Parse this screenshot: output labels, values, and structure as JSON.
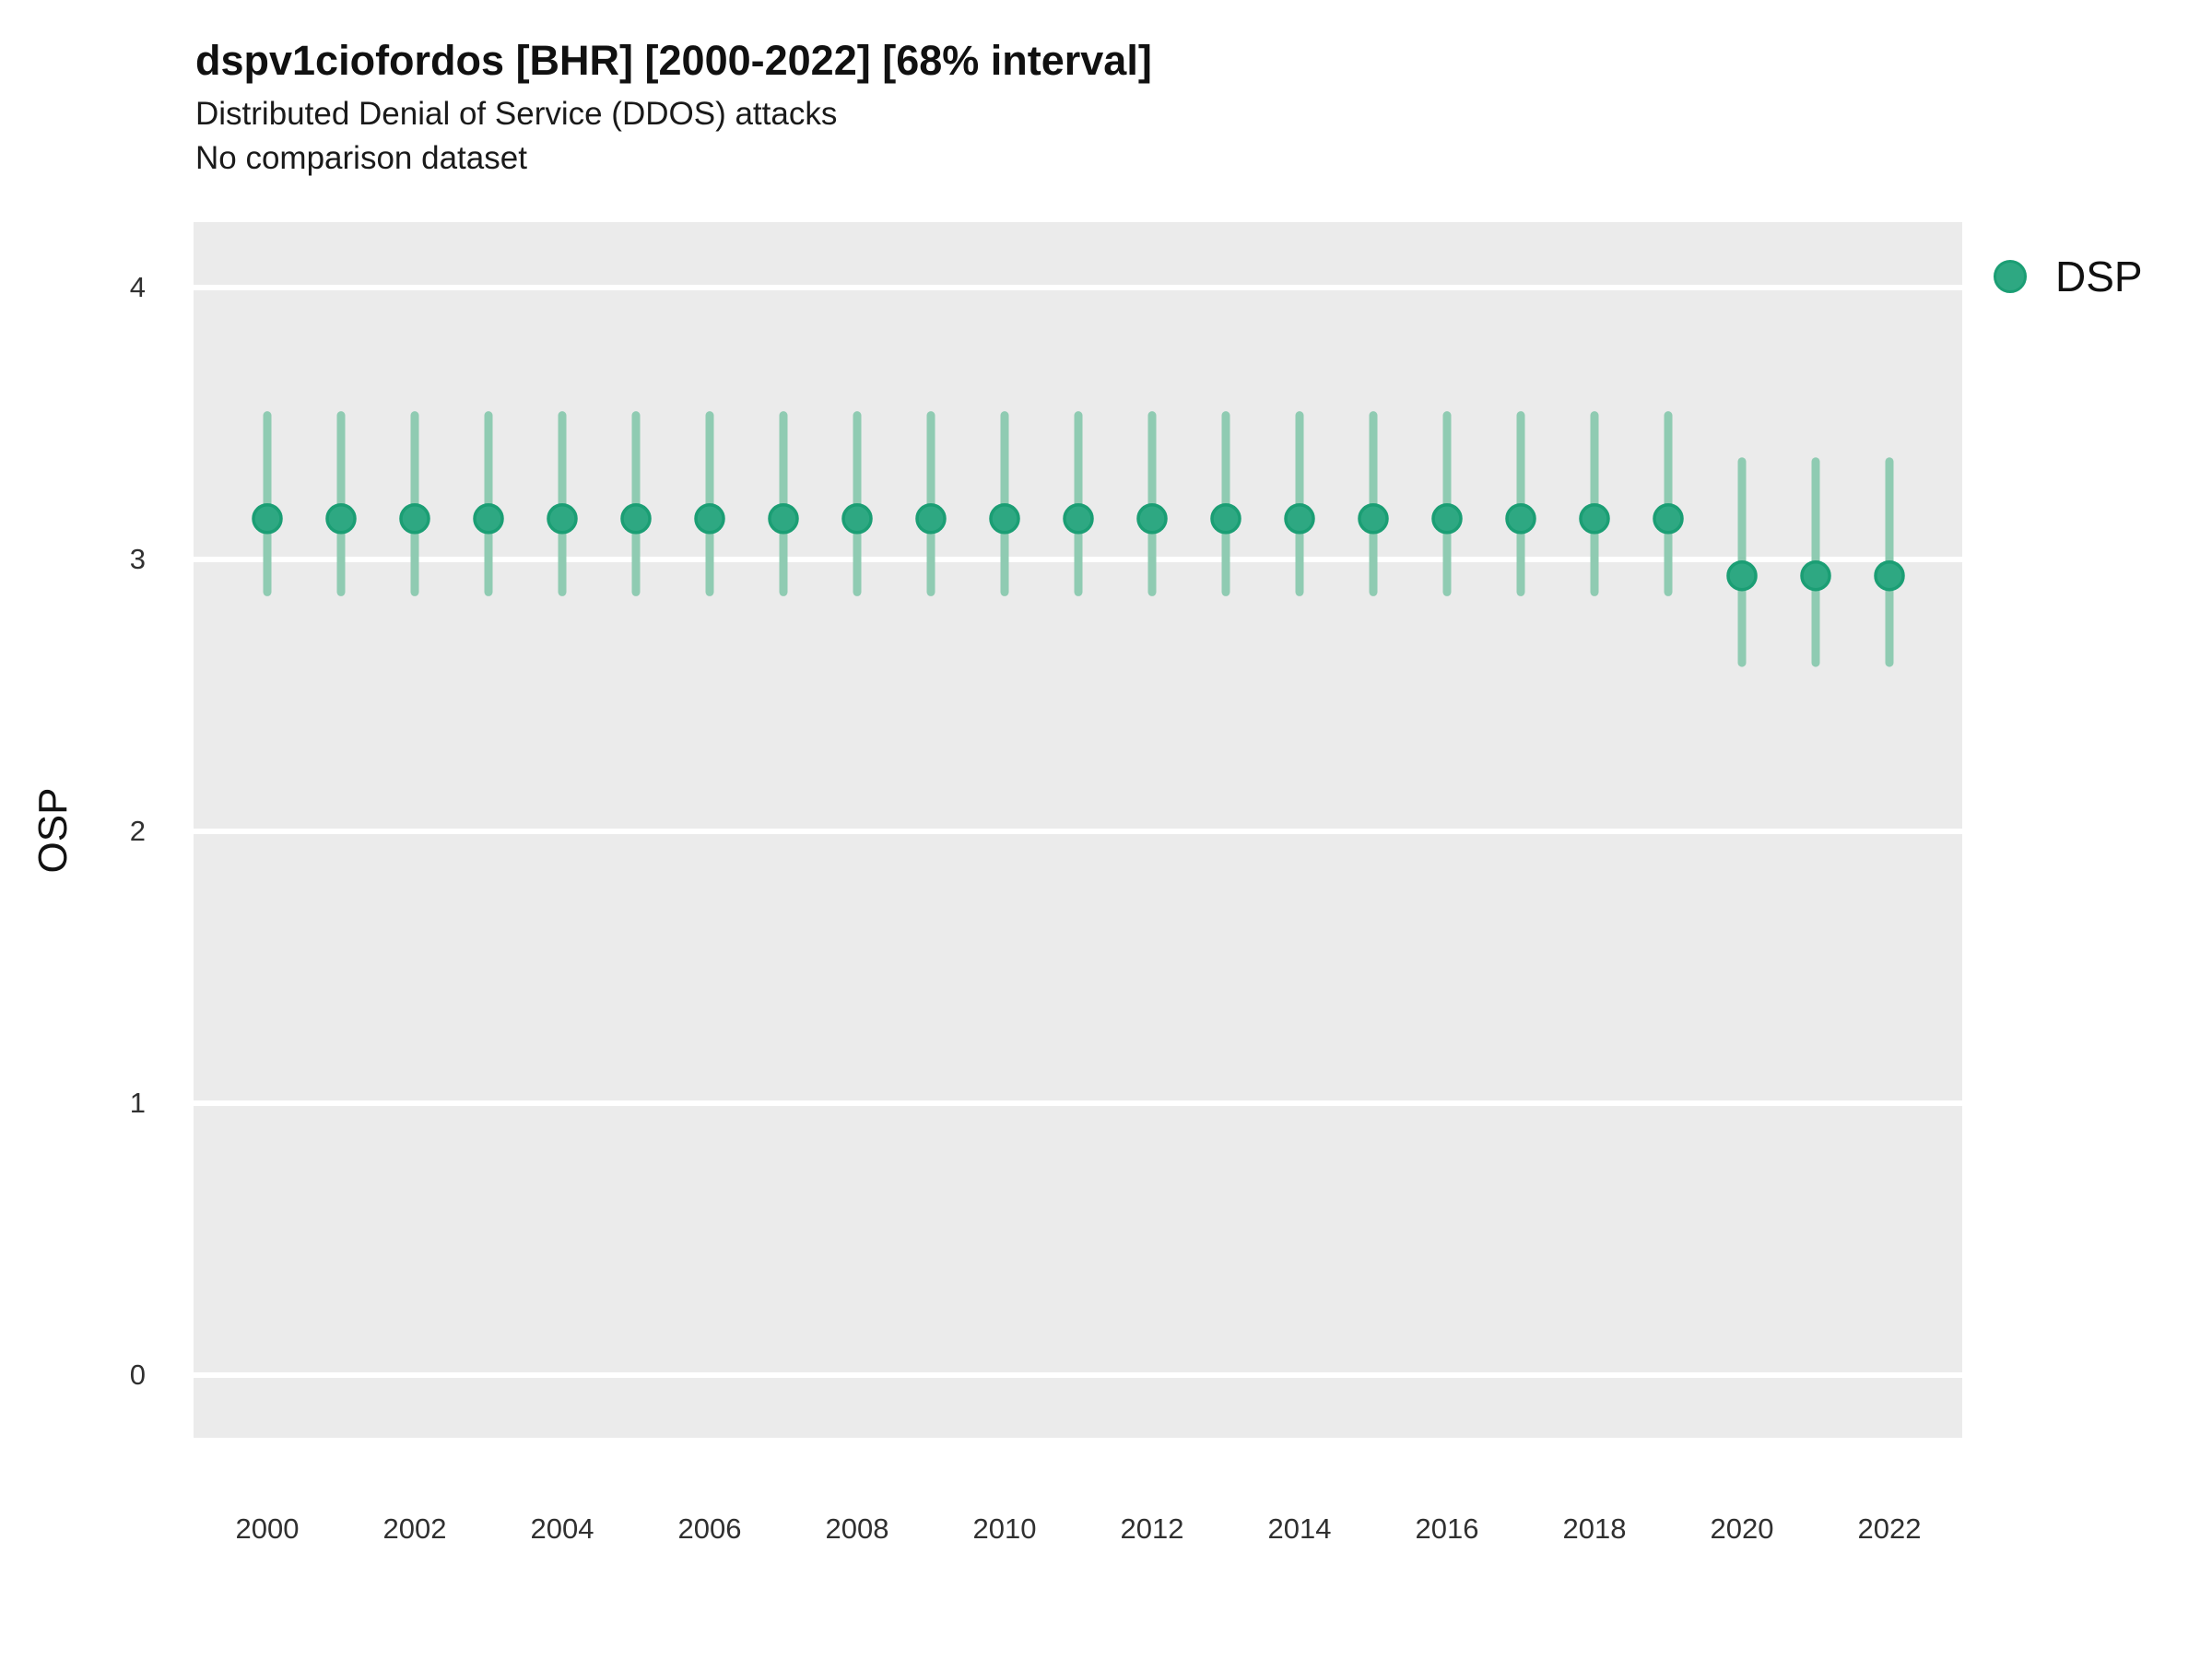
{
  "header": {
    "title": "dspv1ciofordos [BHR] [2000-2022] [68% interval]",
    "subtitle": "Distributed Denial of Service (DDOS) attacks",
    "comparison_note": "No comparison dataset"
  },
  "colors": {
    "panel_bg": "#EBEBEB",
    "gridline": "#FFFFFF",
    "point_fill": "#2EA882",
    "point_stroke": "#1B9E74",
    "interval_line": "#8FCBB2",
    "title_text": "#111111",
    "axis_text": "#303030"
  },
  "chart_data": {
    "type": "scatter",
    "subtype": "pointrange",
    "title": "dspv1ciofordos [BHR] [2000-2022] [68% interval]",
    "subtitle": "Distributed Denial of Service (DDOS) attacks",
    "annotation": "No comparison dataset",
    "interval": "68%",
    "xlabel": "",
    "ylabel": "OSP",
    "xlim": [
      1999,
      2023
    ],
    "ylim": [
      -0.24,
      4.22
    ],
    "x_ticks": [
      2000,
      2002,
      2004,
      2006,
      2008,
      2010,
      2012,
      2014,
      2016,
      2018,
      2020,
      2022
    ],
    "y_ticks": [
      0,
      1,
      2,
      3,
      4
    ],
    "grid": "major-horizontal-white-on-gray",
    "legend": {
      "position": "right",
      "entries": [
        {
          "label": "DSP",
          "color": "#2EA882"
        }
      ]
    },
    "series": [
      {
        "name": "DSP",
        "point_color": "#2EA882",
        "point_stroke": "#1B9E74",
        "interval_color": "#8FCBB2",
        "points": [
          {
            "x": 2000,
            "y": 3.15,
            "lo": 2.88,
            "hi": 3.53
          },
          {
            "x": 2001,
            "y": 3.15,
            "lo": 2.88,
            "hi": 3.53
          },
          {
            "x": 2002,
            "y": 3.15,
            "lo": 2.88,
            "hi": 3.53
          },
          {
            "x": 2003,
            "y": 3.15,
            "lo": 2.88,
            "hi": 3.53
          },
          {
            "x": 2004,
            "y": 3.15,
            "lo": 2.88,
            "hi": 3.53
          },
          {
            "x": 2005,
            "y": 3.15,
            "lo": 2.88,
            "hi": 3.53
          },
          {
            "x": 2006,
            "y": 3.15,
            "lo": 2.88,
            "hi": 3.53
          },
          {
            "x": 2007,
            "y": 3.15,
            "lo": 2.88,
            "hi": 3.53
          },
          {
            "x": 2008,
            "y": 3.15,
            "lo": 2.88,
            "hi": 3.53
          },
          {
            "x": 2009,
            "y": 3.15,
            "lo": 2.88,
            "hi": 3.53
          },
          {
            "x": 2010,
            "y": 3.15,
            "lo": 2.88,
            "hi": 3.53
          },
          {
            "x": 2011,
            "y": 3.15,
            "lo": 2.88,
            "hi": 3.53
          },
          {
            "x": 2012,
            "y": 3.15,
            "lo": 2.88,
            "hi": 3.53
          },
          {
            "x": 2013,
            "y": 3.15,
            "lo": 2.88,
            "hi": 3.53
          },
          {
            "x": 2014,
            "y": 3.15,
            "lo": 2.88,
            "hi": 3.53
          },
          {
            "x": 2015,
            "y": 3.15,
            "lo": 2.88,
            "hi": 3.53
          },
          {
            "x": 2016,
            "y": 3.15,
            "lo": 2.88,
            "hi": 3.53
          },
          {
            "x": 2017,
            "y": 3.15,
            "lo": 2.88,
            "hi": 3.53
          },
          {
            "x": 2018,
            "y": 3.15,
            "lo": 2.88,
            "hi": 3.53
          },
          {
            "x": 2019,
            "y": 3.15,
            "lo": 2.88,
            "hi": 3.53
          },
          {
            "x": 2020,
            "y": 2.94,
            "lo": 2.62,
            "hi": 3.36
          },
          {
            "x": 2021,
            "y": 2.94,
            "lo": 2.62,
            "hi": 3.36
          },
          {
            "x": 2022,
            "y": 2.94,
            "lo": 2.62,
            "hi": 3.36
          }
        ]
      }
    ]
  }
}
